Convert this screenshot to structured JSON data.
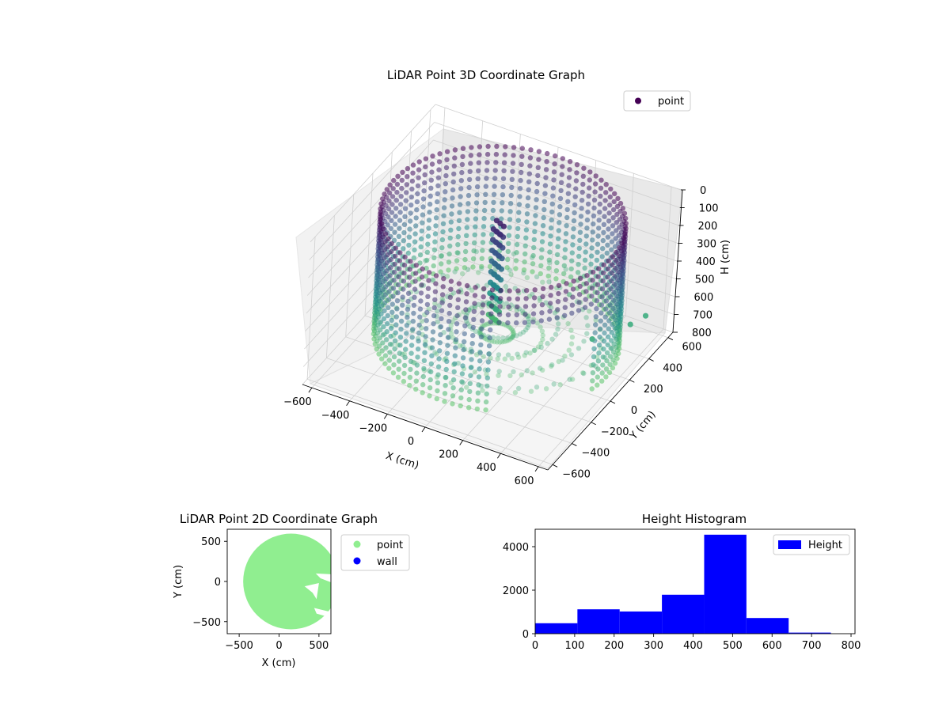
{
  "chart_data": [
    {
      "type": "scatter3d",
      "title": "LiDAR Point 3D Coordinate Graph",
      "xlabel": "X (cm)",
      "ylabel": "Y (cm)",
      "zlabel": "H (cm)",
      "xlim": [
        -650,
        650
      ],
      "ylim": [
        -650,
        650
      ],
      "zlim": [
        0,
        800
      ],
      "zinverted": true,
      "xticks": [
        -600,
        -400,
        -200,
        0,
        200,
        400,
        600
      ],
      "yticks": [
        -600,
        -400,
        -200,
        0,
        200,
        400,
        600
      ],
      "zticks": [
        0,
        100,
        200,
        300,
        400,
        500,
        600,
        700,
        800
      ],
      "legend": {
        "entries": [
          "point"
        ],
        "location": "upper-right"
      },
      "grid": true,
      "colormap": [
        "#440154",
        "#3b528b",
        "#21918c",
        "#5ec962"
      ],
      "structure": {
        "wall_radius_cm": 580,
        "height_range_cm": [
          0,
          700
        ],
        "description_points": "cylindrical wall of points with a central column and an open gap on the right"
      },
      "outliers": [
        {
          "x": 350,
          "y": 400,
          "h": 800
        },
        {
          "x": 450,
          "y": 600,
          "h": 800
        },
        {
          "x": 480,
          "y": 700,
          "h": 800
        }
      ]
    },
    {
      "type": "scatter",
      "title": "LiDAR Point 2D Coordinate Graph",
      "xlabel": "X (cm)",
      "ylabel": "Y (cm)",
      "xlim": [
        -650,
        650
      ],
      "ylim": [
        -650,
        650
      ],
      "xticks": [
        -500,
        0,
        500
      ],
      "yticks": [
        -500,
        0,
        500
      ],
      "legend": {
        "entries": [
          "point",
          "wall"
        ],
        "location": "outside-right"
      },
      "series": [
        {
          "name": "point",
          "color": "#90ee90",
          "shape": "filled disc",
          "center": [
            150,
            0
          ],
          "radius": 600
        },
        {
          "name": "wall",
          "color": "#0000ff",
          "points": []
        }
      ]
    },
    {
      "type": "histogram",
      "title": "Height Histogram",
      "xlim": [
        0,
        810
      ],
      "ylim": [
        0,
        4800
      ],
      "xticks": [
        0,
        100,
        200,
        300,
        400,
        500,
        600,
        700,
        800
      ],
      "yticks": [
        0,
        2000,
        4000
      ],
      "legend": {
        "entries": [
          "Height"
        ],
        "location": "upper-right"
      },
      "series": [
        {
          "name": "Height",
          "color": "#0000ff",
          "bins": [
            {
              "x0": 0,
              "x1": 107,
              "count": 480
            },
            {
              "x0": 107,
              "x1": 214,
              "count": 1120
            },
            {
              "x0": 214,
              "x1": 321,
              "count": 1020
            },
            {
              "x0": 321,
              "x1": 428,
              "count": 1790
            },
            {
              "x0": 428,
              "x1": 535,
              "count": 4550
            },
            {
              "x0": 535,
              "x1": 642,
              "count": 720
            },
            {
              "x0": 642,
              "x1": 749,
              "count": 50
            }
          ]
        }
      ]
    }
  ]
}
